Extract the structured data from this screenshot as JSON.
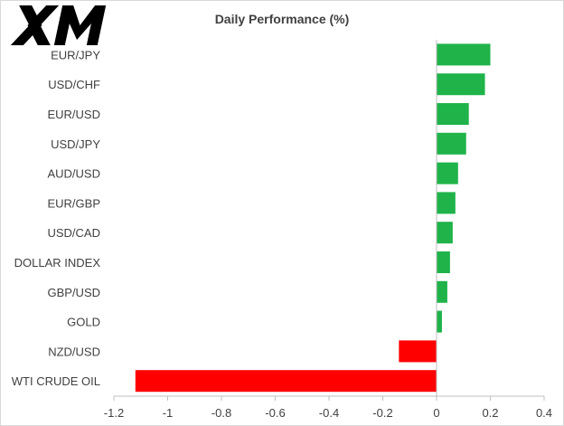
{
  "brand": {
    "logo_text": "XM"
  },
  "chart_data": {
    "type": "bar",
    "orientation": "horizontal",
    "title": "Daily Performance (%)",
    "xlabel": "",
    "ylabel": "",
    "xlim": [
      -1.2,
      0.4
    ],
    "xticks": [
      -1.2,
      -1,
      -0.8,
      -0.6,
      -0.4,
      -0.2,
      0,
      0.2,
      0.4
    ],
    "xtick_labels": [
      "-1.2",
      "-1",
      "-0.8",
      "-0.6",
      "-0.4",
      "-0.2",
      "0",
      "0.2",
      "0.4"
    ],
    "grid": false,
    "legend": "none",
    "categories": [
      "EUR/JPY",
      "USD/CHF",
      "EUR/USD",
      "USD/JPY",
      "AUD/USD",
      "EUR/GBP",
      "USD/CAD",
      "DOLLAR INDEX",
      "GBP/USD",
      "GOLD",
      "NZD/USD",
      "WTI CRUDE OIL"
    ],
    "values": [
      0.2,
      0.18,
      0.12,
      0.11,
      0.08,
      0.07,
      0.06,
      0.05,
      0.04,
      0.02,
      -0.14,
      -1.12
    ],
    "colors": {
      "positive": "#1fb34a",
      "negative": "#ff0000"
    }
  }
}
